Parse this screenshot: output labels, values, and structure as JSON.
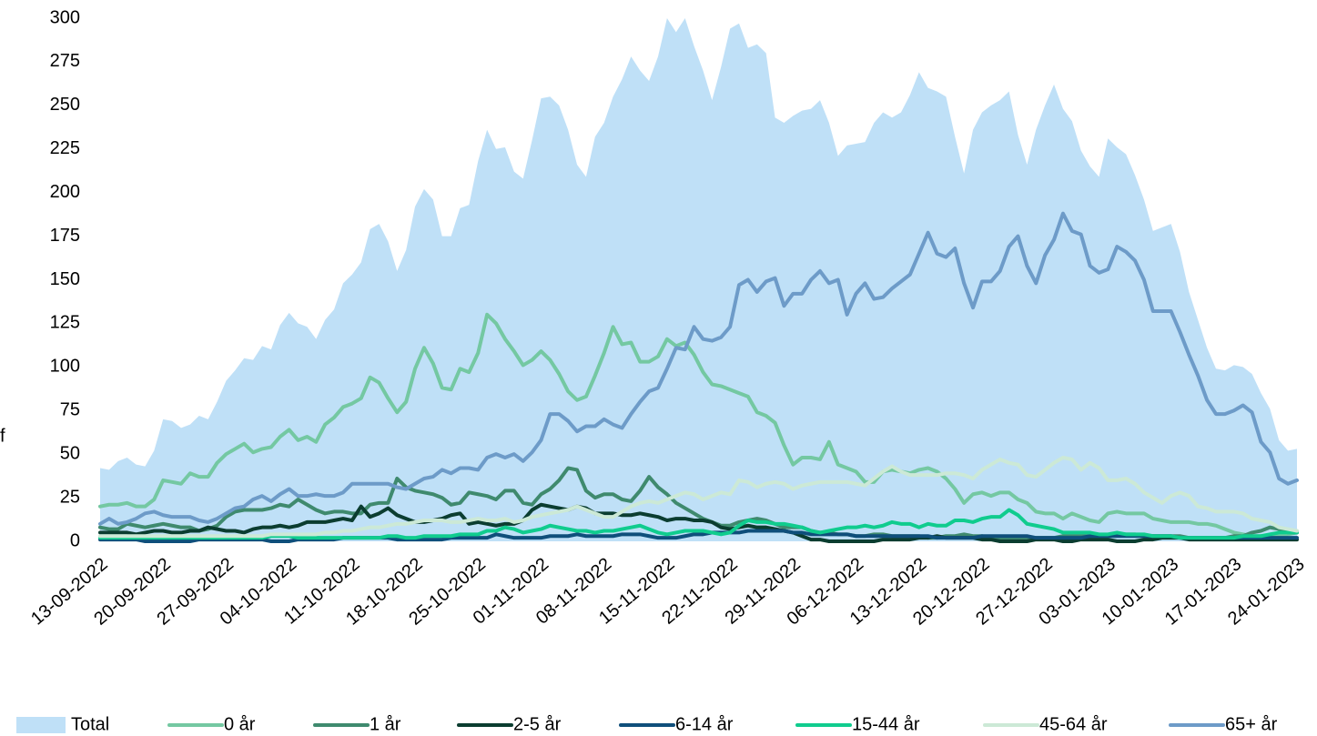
{
  "chart_data": {
    "type": "line",
    "y_label": "f",
    "categories": [
      "13-09-2022",
      null,
      null,
      null,
      null,
      null,
      null,
      "20-09-2022",
      null,
      null,
      null,
      null,
      null,
      null,
      "27-09-2022",
      null,
      null,
      null,
      null,
      null,
      null,
      "04-10-2022",
      null,
      null,
      null,
      null,
      null,
      null,
      "11-10-2022",
      null,
      null,
      null,
      null,
      null,
      null,
      "18-10-2022",
      null,
      null,
      null,
      null,
      null,
      null,
      "25-10-2022",
      null,
      null,
      null,
      null,
      null,
      null,
      "01-11-2022",
      null,
      null,
      null,
      null,
      null,
      null,
      "08-11-2022",
      null,
      null,
      null,
      null,
      null,
      null,
      "15-11-2022",
      null,
      null,
      null,
      null,
      null,
      null,
      "22-11-2022",
      null,
      null,
      null,
      null,
      null,
      null,
      "29-11-2022",
      null,
      null,
      null,
      null,
      null,
      null,
      "06-12-2022",
      null,
      null,
      null,
      null,
      null,
      null,
      "13-12-2022",
      null,
      null,
      null,
      null,
      null,
      null,
      "20-12-2022",
      null,
      null,
      null,
      null,
      null,
      null,
      "27-12-2022",
      null,
      null,
      null,
      null,
      null,
      null,
      "03-01-2023",
      null,
      null,
      null,
      null,
      null,
      null,
      "10-01-2023",
      null,
      null,
      null,
      null,
      null,
      null,
      "17-01-2023",
      null,
      null,
      null,
      null,
      null,
      null,
      "24-01-2023"
    ],
    "ylim": [
      0,
      300
    ],
    "yticks": [
      0,
      25,
      50,
      75,
      100,
      125,
      150,
      175,
      200,
      225,
      250,
      275,
      300
    ],
    "grid": false,
    "series": [
      {
        "name": "Total",
        "style": "area",
        "color": "#bfe0f7",
        "values": [
          42,
          41,
          46,
          48,
          44,
          43,
          52,
          70,
          69,
          65,
          67,
          72,
          70,
          80,
          92,
          98,
          105,
          104,
          112,
          110,
          124,
          131,
          125,
          123,
          116,
          127,
          133,
          148,
          153,
          160,
          179,
          182,
          172,
          155,
          167,
          192,
          202,
          196,
          175,
          175,
          191,
          193,
          218,
          236,
          225,
          226,
          212,
          208,
          230,
          254,
          255,
          250,
          236,
          216,
          209,
          232,
          240,
          255,
          265,
          278,
          270,
          264,
          278,
          300,
          292,
          300,
          284,
          270,
          253,
          272,
          294,
          297,
          283,
          285,
          280,
          243,
          240,
          244,
          247,
          248,
          253,
          240,
          221,
          227,
          228,
          229,
          240,
          246,
          243,
          246,
          256,
          269,
          260,
          258,
          255,
          232,
          211,
          236,
          246,
          250,
          253,
          258,
          233,
          216,
          236,
          250,
          262,
          248,
          241,
          224,
          215,
          209,
          231,
          226,
          222,
          210,
          196,
          178,
          180,
          182,
          166,
          143,
          127,
          111,
          99,
          98,
          101,
          100,
          96,
          85,
          76,
          58,
          52,
          53
        ]
      },
      {
        "name": "0 år",
        "style": "line",
        "color": "#74c8a2",
        "values": [
          20,
          21,
          21,
          22,
          20,
          20,
          24,
          35,
          34,
          33,
          39,
          37,
          37,
          45,
          50,
          53,
          56,
          51,
          53,
          54,
          60,
          64,
          58,
          60,
          57,
          67,
          71,
          77,
          79,
          82,
          94,
          91,
          82,
          74,
          80,
          99,
          111,
          102,
          88,
          87,
          99,
          97,
          108,
          130,
          125,
          116,
          109,
          101,
          104,
          109,
          104,
          96,
          86,
          81,
          83,
          95,
          108,
          123,
          113,
          114,
          103,
          103,
          106,
          116,
          112,
          114,
          107,
          97,
          90,
          89,
          87,
          85,
          83,
          74,
          72,
          68,
          55,
          44,
          48,
          48,
          47,
          57,
          44,
          42,
          40,
          34,
          34,
          40,
          41,
          40,
          39,
          41,
          42,
          40,
          36,
          30,
          22,
          27,
          28,
          26,
          28,
          28,
          24,
          22,
          17,
          16,
          16,
          13,
          16,
          14,
          12,
          11,
          16,
          17,
          16,
          16,
          16,
          13,
          12,
          11,
          11,
          11,
          10,
          10,
          9,
          7,
          5,
          4,
          3,
          3,
          3,
          3,
          4,
          5
        ]
      },
      {
        "name": "1 år",
        "style": "line",
        "color": "#3f8a6e",
        "values": [
          8,
          7,
          7,
          10,
          9,
          8,
          9,
          10,
          9,
          8,
          8,
          6,
          7,
          9,
          14,
          17,
          18,
          18,
          18,
          19,
          21,
          20,
          24,
          21,
          18,
          16,
          17,
          17,
          16,
          16,
          21,
          22,
          22,
          36,
          31,
          29,
          28,
          27,
          25,
          21,
          22,
          28,
          27,
          26,
          24,
          29,
          29,
          22,
          21,
          27,
          30,
          35,
          42,
          41,
          29,
          25,
          27,
          27,
          24,
          23,
          29,
          37,
          31,
          27,
          22,
          19,
          16,
          13,
          11,
          9,
          9,
          11,
          12,
          13,
          12,
          10,
          8,
          8,
          8,
          6,
          5,
          5,
          4,
          4,
          3,
          3,
          4,
          4,
          3,
          3,
          3,
          3,
          2,
          2,
          3,
          3,
          4,
          3,
          3,
          2,
          2,
          2,
          2,
          2,
          2,
          2,
          2,
          3,
          3,
          3,
          3,
          3,
          3,
          4,
          4,
          4,
          3,
          3,
          3,
          3,
          3,
          2,
          2,
          2,
          2,
          2,
          3,
          3,
          5,
          6,
          8,
          7,
          5,
          5
        ]
      },
      {
        "name": "2-5 år",
        "style": "line",
        "color": "#0b3d30",
        "values": [
          5,
          5,
          5,
          5,
          4,
          5,
          6,
          6,
          5,
          5,
          6,
          6,
          8,
          7,
          6,
          6,
          5,
          7,
          8,
          8,
          9,
          8,
          9,
          11,
          11,
          11,
          12,
          13,
          12,
          20,
          14,
          16,
          19,
          15,
          13,
          11,
          11,
          12,
          13,
          15,
          16,
          10,
          11,
          10,
          9,
          10,
          10,
          12,
          18,
          21,
          20,
          19,
          18,
          20,
          19,
          16,
          16,
          16,
          15,
          15,
          16,
          15,
          14,
          12,
          13,
          13,
          12,
          12,
          11,
          8,
          7,
          8,
          9,
          8,
          8,
          7,
          6,
          5,
          3,
          1,
          1,
          0,
          0,
          0,
          0,
          0,
          0,
          1,
          1,
          1,
          1,
          2,
          2,
          3,
          2,
          2,
          2,
          2,
          1,
          1,
          0,
          0,
          0,
          0,
          1,
          1,
          1,
          0,
          0,
          1,
          1,
          1,
          1,
          0,
          0,
          0,
          1,
          1,
          2,
          2,
          2,
          1,
          1,
          1,
          1,
          1,
          1,
          1,
          1,
          1,
          1,
          1,
          1,
          1
        ]
      },
      {
        "name": "6-14 år",
        "style": "line",
        "color": "#0f4f7b",
        "values": [
          1,
          1,
          1,
          1,
          1,
          0,
          0,
          0,
          0,
          0,
          0,
          1,
          1,
          1,
          1,
          1,
          1,
          1,
          1,
          0,
          0,
          0,
          1,
          1,
          1,
          1,
          1,
          2,
          2,
          2,
          2,
          2,
          2,
          1,
          1,
          1,
          1,
          1,
          1,
          2,
          2,
          2,
          2,
          2,
          4,
          3,
          2,
          2,
          2,
          2,
          3,
          3,
          3,
          4,
          3,
          3,
          3,
          3,
          4,
          4,
          4,
          3,
          2,
          2,
          2,
          3,
          4,
          4,
          5,
          5,
          5,
          5,
          6,
          6,
          6,
          6,
          6,
          5,
          5,
          4,
          4,
          4,
          4,
          4,
          3,
          3,
          3,
          3,
          3,
          3,
          3,
          3,
          3,
          2,
          2,
          2,
          2,
          2,
          3,
          3,
          3,
          3,
          3,
          3,
          2,
          2,
          2,
          2,
          2,
          2,
          3,
          3,
          3,
          3,
          3,
          3,
          3,
          3,
          3,
          3,
          2,
          2,
          2,
          2,
          2,
          2,
          2,
          2,
          2,
          2,
          2,
          2,
          2,
          2
        ]
      },
      {
        "name": "15-44 år",
        "style": "line",
        "color": "#10cc8e",
        "values": [
          2,
          2,
          2,
          2,
          2,
          2,
          2,
          2,
          2,
          2,
          2,
          2,
          2,
          2,
          2,
          2,
          2,
          2,
          2,
          3,
          3,
          3,
          2,
          2,
          2,
          2,
          2,
          2,
          2,
          2,
          2,
          2,
          3,
          3,
          2,
          2,
          3,
          3,
          3,
          3,
          4,
          4,
          4,
          6,
          6,
          8,
          7,
          5,
          6,
          7,
          9,
          8,
          7,
          6,
          6,
          5,
          6,
          6,
          7,
          8,
          9,
          7,
          5,
          4,
          5,
          6,
          6,
          6,
          5,
          4,
          5,
          9,
          12,
          11,
          11,
          10,
          10,
          9,
          8,
          6,
          5,
          6,
          7,
          8,
          8,
          9,
          8,
          9,
          11,
          10,
          10,
          8,
          10,
          9,
          9,
          12,
          12,
          11,
          13,
          14,
          14,
          18,
          15,
          10,
          9,
          8,
          7,
          5,
          5,
          5,
          5,
          4,
          4,
          5,
          4,
          4,
          4,
          3,
          3,
          3,
          2,
          2,
          2,
          2,
          2,
          2,
          2,
          3,
          3,
          3,
          4,
          5,
          5,
          5
        ]
      },
      {
        "name": "45-64 år",
        "style": "line",
        "color": "#cce9d6",
        "values": [
          3,
          3,
          3,
          3,
          3,
          3,
          3,
          3,
          3,
          3,
          3,
          3,
          3,
          3,
          3,
          3,
          3,
          3,
          3,
          4,
          4,
          4,
          4,
          4,
          4,
          5,
          5,
          6,
          6,
          7,
          8,
          8,
          9,
          10,
          10,
          11,
          12,
          12,
          12,
          11,
          11,
          12,
          13,
          12,
          12,
          13,
          11,
          12,
          14,
          15,
          16,
          17,
          18,
          20,
          18,
          16,
          14,
          14,
          17,
          20,
          22,
          23,
          22,
          24,
          26,
          28,
          27,
          24,
          26,
          28,
          27,
          35,
          34,
          31,
          33,
          34,
          33,
          30,
          32,
          33,
          34,
          34,
          34,
          34,
          33,
          32,
          36,
          40,
          43,
          40,
          38,
          38,
          38,
          38,
          39,
          39,
          38,
          36,
          41,
          44,
          47,
          45,
          44,
          38,
          37,
          41,
          45,
          48,
          47,
          41,
          45,
          42,
          35,
          35,
          36,
          33,
          28,
          25,
          22,
          26,
          28,
          26,
          20,
          19,
          17,
          17,
          17,
          16,
          13,
          12,
          11,
          8,
          7,
          6
        ]
      },
      {
        "name": "65+ år",
        "style": "line",
        "color": "#6d9bc8",
        "values": [
          10,
          13,
          10,
          11,
          13,
          16,
          17,
          15,
          14,
          14,
          14,
          12,
          11,
          13,
          16,
          19,
          20,
          24,
          26,
          23,
          27,
          30,
          26,
          26,
          27,
          26,
          26,
          28,
          33,
          33,
          33,
          33,
          33,
          31,
          30,
          33,
          36,
          37,
          41,
          39,
          42,
          42,
          41,
          48,
          50,
          48,
          50,
          46,
          51,
          58,
          73,
          73,
          69,
          63,
          66,
          66,
          70,
          67,
          65,
          73,
          80,
          86,
          88,
          99,
          111,
          110,
          123,
          116,
          115,
          117,
          123,
          147,
          150,
          143,
          149,
          151,
          135,
          142,
          142,
          150,
          155,
          148,
          150,
          130,
          142,
          148,
          139,
          140,
          145,
          149,
          153,
          165,
          177,
          165,
          163,
          168,
          148,
          134,
          149,
          149,
          155,
          169,
          175,
          158,
          148,
          164,
          173,
          188,
          178,
          176,
          158,
          154,
          156,
          169,
          166,
          161,
          150,
          132,
          132,
          132,
          120,
          107,
          95,
          81,
          73,
          73,
          75,
          78,
          74,
          57,
          51,
          36,
          33,
          35
        ]
      }
    ]
  }
}
